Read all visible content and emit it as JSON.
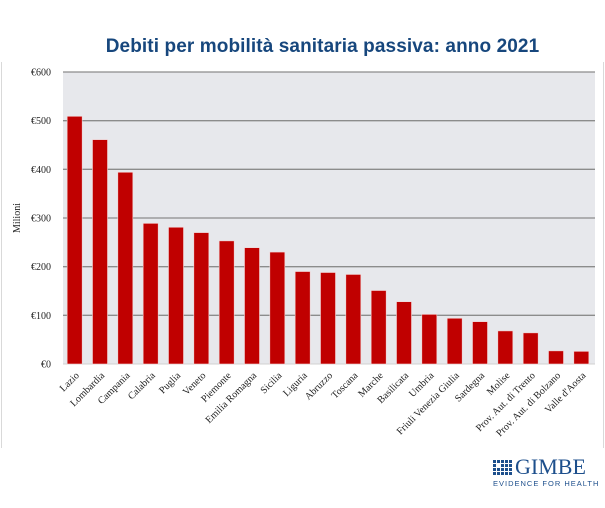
{
  "chart_data": {
    "type": "bar",
    "title": "Debiti per mobilità sanitaria passiva: anno 2021",
    "xlabel": "",
    "ylabel": "Milioni",
    "ylim": [
      0,
      600
    ],
    "ytick_values": [
      0,
      100,
      200,
      300,
      400,
      500,
      600
    ],
    "ytick_labels": [
      "€0",
      "€100",
      "€200",
      "€300",
      "€400",
      "€500",
      "€600"
    ],
    "grid": true,
    "legend": "none",
    "categories": [
      "Lazio",
      "Lombardia",
      "Campania",
      "Calabria",
      "Puglia",
      "Veneto",
      "Piemonte",
      "Emilia Romagna",
      "Sicilia",
      "Liguria",
      "Abruzzo",
      "Toscana",
      "Marche",
      "Basilicata",
      "Umbria",
      "Friuli Venezia Giulia",
      "Sardegna",
      "Molise",
      "Prov. Aut. di Trento",
      "Prov. Aut. di Bolzano",
      "Valle d'Aosta"
    ],
    "values": [
      509,
      461,
      394,
      289,
      281,
      270,
      253,
      239,
      230,
      190,
      188,
      184,
      151,
      128,
      102,
      94,
      87,
      68,
      64,
      27,
      26
    ],
    "colors": {
      "bar": "#c00000",
      "plot_bg": "#e7e8ec",
      "grid": "#8c8c8c",
      "title": "#17477d"
    }
  },
  "logo": {
    "name": "GIMBE",
    "tagline": "EVIDENCE FOR HEALTH",
    "color": "#1d4f8c"
  }
}
